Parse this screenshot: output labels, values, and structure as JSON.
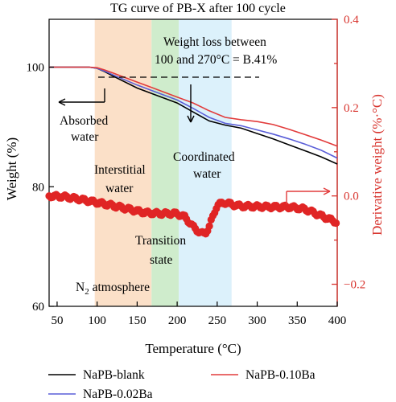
{
  "chart_data": {
    "type": "line",
    "title": "TG curve of PB-X after 100 cycle",
    "xlabel": "Temperature (°C)",
    "ylabel": "Weight (%)",
    "y2label": "Derivative weight (%·°C)",
    "xlim": [
      40,
      400
    ],
    "ylim": [
      60,
      108
    ],
    "y2lim": [
      -0.25,
      0.4
    ],
    "xticks": [
      50,
      100,
      150,
      200,
      250,
      300,
      350,
      400
    ],
    "yticks": [
      60,
      80,
      100
    ],
    "y2ticks": [
      -0.2,
      -0.1,
      0.0,
      0.1,
      0.2,
      0.3,
      0.4
    ],
    "y2ticklabels": [
      "−0.2",
      "",
      "0.0",
      "",
      "0.2",
      "",
      "0.4"
    ],
    "regions": [
      {
        "name": "Interstitial water",
        "x0": 97,
        "x1": 168,
        "color": "#fbe0c8"
      },
      {
        "name": "Transition state",
        "x0": 168,
        "x1": 202,
        "color": "#cfeccc"
      },
      {
        "name": "Coordinated water",
        "x0": 202,
        "x1": 268,
        "color": "#dcf1fb"
      }
    ],
    "series": [
      {
        "name": "NaPB-blank",
        "color": "#000000",
        "axis": "left",
        "x": [
          40,
          90,
          100,
          110,
          120,
          150,
          170,
          200,
          220,
          240,
          260,
          280,
          300,
          320,
          340,
          360,
          380,
          400
        ],
        "y": [
          100,
          100,
          99.8,
          99.2,
          98.5,
          96.5,
          95.5,
          94,
          92.5,
          91,
          90.3,
          89.8,
          88.9,
          88,
          87,
          86,
          85,
          83.8
        ]
      },
      {
        "name": "NaPB-0.02Ba",
        "color": "#5a5ed8",
        "axis": "left",
        "x": [
          40,
          90,
          100,
          110,
          120,
          150,
          170,
          200,
          220,
          240,
          260,
          280,
          300,
          320,
          340,
          360,
          380,
          400
        ],
        "y": [
          100,
          100,
          99.8,
          99.3,
          98.7,
          97,
          96,
          94.5,
          93.1,
          91.6,
          90.6,
          90.2,
          89.5,
          88.8,
          88,
          87.1,
          86.1,
          84.8
        ]
      },
      {
        "name": "NaPB-0.10Ba",
        "color": "#e23b3b",
        "axis": "left",
        "x": [
          40,
          90,
          100,
          110,
          120,
          150,
          170,
          200,
          220,
          240,
          260,
          280,
          300,
          320,
          340,
          360,
          380,
          400
        ],
        "y": [
          100,
          100,
          99.9,
          99.5,
          99,
          97.5,
          96.5,
          95,
          94,
          92.7,
          91.6,
          91.2,
          90.9,
          90.4,
          89.6,
          88.7,
          87.8,
          86.8
        ]
      },
      {
        "name": "Derivative",
        "color": "#e02525",
        "axis": "right",
        "style": "dots",
        "x": [
          40,
          60,
          80,
          100,
          120,
          140,
          160,
          180,
          200,
          210,
          220,
          230,
          235,
          240,
          245,
          250,
          260,
          270,
          280,
          300,
          320,
          340,
          360,
          380,
          400
        ],
        "y": [
          0.0,
          -0.002,
          -0.008,
          -0.015,
          -0.022,
          -0.03,
          -0.038,
          -0.04,
          -0.04,
          -0.048,
          -0.07,
          -0.085,
          -0.085,
          -0.07,
          -0.045,
          -0.02,
          -0.015,
          -0.02,
          -0.023,
          -0.024,
          -0.025,
          -0.025,
          -0.03,
          -0.045,
          -0.06
        ]
      }
    ],
    "legend": {
      "placement": "bottom"
    },
    "annotations": {
      "weight_loss_line1": "Weight loss between",
      "weight_loss_line2": "100 and 270°C = B.41%",
      "absorbed_line1": "Absorbed",
      "absorbed_line2": "water",
      "interstitial_line1": "Interstitial",
      "interstitial_line2": "water",
      "coordinated_line1": "Coordinated",
      "coordinated_line2": "water",
      "transition_line1": "Transition",
      "transition_line2": "state",
      "atmosphere_prefix": "N",
      "atmosphere_sub": "2",
      "atmosphere_suffix": " atmosphere"
    }
  }
}
